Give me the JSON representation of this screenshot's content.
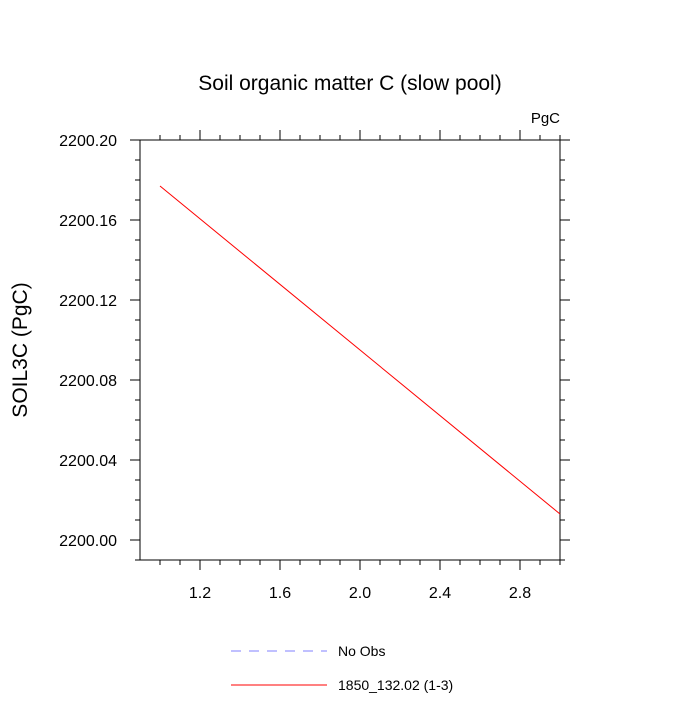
{
  "chart_data": {
    "type": "line",
    "title": "Soil organic matter C (slow pool)",
    "units_label": "PgC",
    "xlabel": "",
    "ylabel": "SOIL3C  (PgC)",
    "xlim": [
      0.9,
      3.0
    ],
    "ylim": [
      2199.99,
      2200.2
    ],
    "x_ticks": [
      1.2,
      1.6,
      2.0,
      2.4,
      2.8
    ],
    "x_tick_labels": [
      "1.2",
      "1.6",
      "2.0",
      "2.4",
      "2.8"
    ],
    "y_ticks": [
      2200.0,
      2200.04,
      2200.08,
      2200.12,
      2200.16,
      2200.2
    ],
    "y_tick_labels": [
      "2200.00",
      "2200.04",
      "2200.08",
      "2200.12",
      "2200.16",
      "2200.20"
    ],
    "grid": false,
    "legend_placement": "bottom",
    "series": [
      {
        "name": "No Obs",
        "color": "#8080ff",
        "dash": "dashed",
        "x": [],
        "y": []
      },
      {
        "name": "1850_132.02 (1-3)",
        "color": "#ff0000",
        "dash": "solid",
        "x": [
          1.0,
          3.0
        ],
        "y": [
          2200.177,
          2200.013
        ]
      }
    ]
  }
}
